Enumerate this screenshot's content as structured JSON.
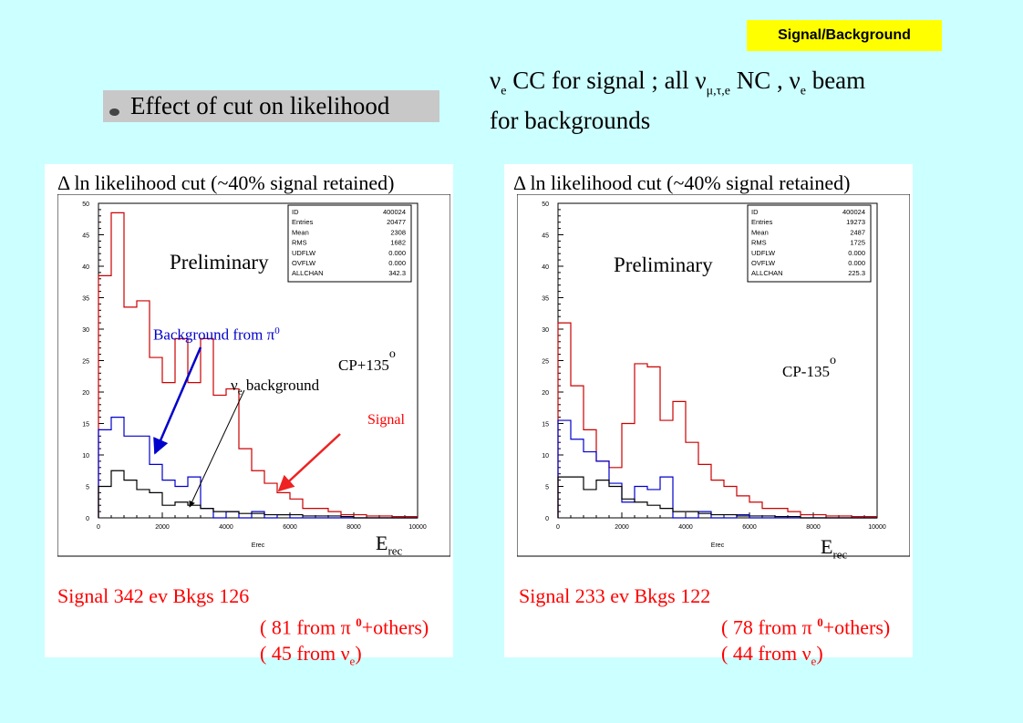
{
  "tag": "Signal/Background",
  "headline": {
    "nu": "ν",
    "sub_e": "e",
    "part1": " CC for signal ; all ν",
    "sub_flavors": "μ,τ,e",
    "part2": " NC , ν",
    "sub_e2": "e",
    "part3": " beam",
    "line2": "for backgrounds"
  },
  "effect_label": "Effect of cut on likelihood",
  "colors": {
    "background": "#ccffff",
    "signal": "#cc0000",
    "pi0": "#0000cc",
    "nue": "#000000",
    "tag": "#ffff00"
  },
  "panels": [
    {
      "title_delta": "Δ",
      "title_text": " ln likelihood cut (~40% signal retained)",
      "preliminary": "Preliminary",
      "cp_label": "CP+135",
      "cp_degree": "o",
      "erec_E": "E",
      "erec_sub": "rec",
      "axis_label": "Erec",
      "annotations": {
        "background_pi0": "Background from π",
        "background_pi0_sup": "0",
        "nue_nu": "ν",
        "nue_sub": "e",
        "nue_rest": " background",
        "signal": "Signal"
      },
      "stats_box": [
        [
          "ID",
          "400024"
        ],
        [
          "Entries",
          "20477"
        ],
        [
          "Mean",
          "2308"
        ],
        [
          "RMS",
          "1682"
        ],
        [
          "UDFLW",
          "0.000"
        ],
        [
          "OVFLW",
          "0.000"
        ],
        [
          "ALLCHAN",
          "342.3"
        ]
      ],
      "summary": {
        "line1": "Signal 342 ev   Bkgs   126",
        "line2a": "(   81 from π  ",
        "line2sup": "0",
        "line2b": "+others)",
        "line3a": "(   45 from ν",
        "line3sub": "e",
        "line3b": ")"
      }
    },
    {
      "title_delta": "Δ",
      "title_text": " ln likelihood cut (~40% signal retained)",
      "preliminary": "Preliminary",
      "cp_label": "CP-135",
      "cp_degree": "o",
      "erec_E": "E",
      "erec_sub": "rec",
      "axis_label": "Erec",
      "stats_box": [
        [
          "ID",
          "400024"
        ],
        [
          "Entries",
          "19273"
        ],
        [
          "Mean",
          "2487"
        ],
        [
          "RMS",
          "1725"
        ],
        [
          "UDFLW",
          "0.000"
        ],
        [
          "OVFLW",
          "0.000"
        ],
        [
          "ALLCHAN",
          "225.3"
        ]
      ],
      "summary": {
        "line1": "Signal 233 ev   Bkgs   122",
        "line2a": "(   78 from π  ",
        "line2sup": "0",
        "line2b": "+others)",
        "line3a": "(   44 from ν",
        "line3sub": "e",
        "line3b": ")"
      }
    }
  ],
  "chart_data": [
    {
      "type": "histogram",
      "xlim": [
        0,
        10000
      ],
      "ylim": [
        0,
        50
      ],
      "x_ticks": [
        "0",
        "2000",
        "4000",
        "6000",
        "8000",
        "10000"
      ],
      "y_ticks": [
        "0",
        "5",
        "10",
        "15",
        "20",
        "25",
        "30",
        "35",
        "40",
        "45",
        "50"
      ],
      "bin_width": 400,
      "series": [
        {
          "name": "Signal",
          "color": "#cc0000",
          "values": [
            38.5,
            48.5,
            33.5,
            34.5,
            25.5,
            21.5,
            28.5,
            21.5,
            28.5,
            19.5,
            20.5,
            11,
            7.5,
            5.5,
            4,
            3,
            1.5,
            1.5,
            1,
            0.5,
            0.5,
            0.3,
            0.3,
            0.2,
            0.2
          ]
        },
        {
          "name": "Background from π0",
          "color": "#0000cc",
          "values": [
            14,
            16,
            13,
            13,
            8.5,
            6,
            5,
            6.5,
            1.5,
            0,
            1,
            0,
            1,
            0,
            0.5,
            0,
            0,
            0,
            0,
            0,
            0,
            0,
            0,
            0,
            0
          ]
        },
        {
          "name": "νe background",
          "color": "#000000",
          "values": [
            5,
            7.5,
            6,
            4.5,
            4,
            2,
            2.5,
            2,
            1.5,
            1,
            1,
            0.7,
            0.7,
            0.5,
            0.5,
            0.5,
            0.3,
            0.3,
            0.3,
            0.2,
            0,
            0,
            0,
            0,
            0
          ]
        }
      ]
    },
    {
      "type": "histogram",
      "xlim": [
        0,
        10000
      ],
      "ylim": [
        0,
        50
      ],
      "x_ticks": [
        "0",
        "2000",
        "4000",
        "6000",
        "8000",
        "10000"
      ],
      "y_ticks": [
        "0",
        "5",
        "10",
        "15",
        "20",
        "25",
        "30",
        "35",
        "40",
        "45",
        "50"
      ],
      "bin_width": 400,
      "series": [
        {
          "color": "#cc0000",
          "values": [
            31,
            21,
            14,
            9,
            8,
            15,
            24.5,
            24,
            15.5,
            18.5,
            12,
            8.5,
            6,
            5,
            3.5,
            2.5,
            1.5,
            1.5,
            1,
            0.5,
            0.5,
            0.3,
            0.3,
            0.2,
            0.2
          ]
        },
        {
          "color": "#0000cc",
          "values": [
            15.5,
            12.5,
            10.5,
            9,
            5.5,
            2.5,
            5,
            4.5,
            6.5,
            0,
            0,
            1,
            0,
            0,
            0.5,
            0,
            0,
            0,
            0,
            0,
            0,
            0,
            0,
            0,
            0
          ]
        },
        {
          "color": "#000000",
          "values": [
            6.5,
            6.5,
            4.5,
            6,
            5,
            3,
            2.5,
            2,
            1.5,
            1,
            1,
            0.7,
            0.5,
            0.5,
            0.3,
            0.3,
            0.3,
            0.2,
            0.2,
            0,
            0,
            0,
            0,
            0,
            0
          ]
        }
      ]
    }
  ]
}
